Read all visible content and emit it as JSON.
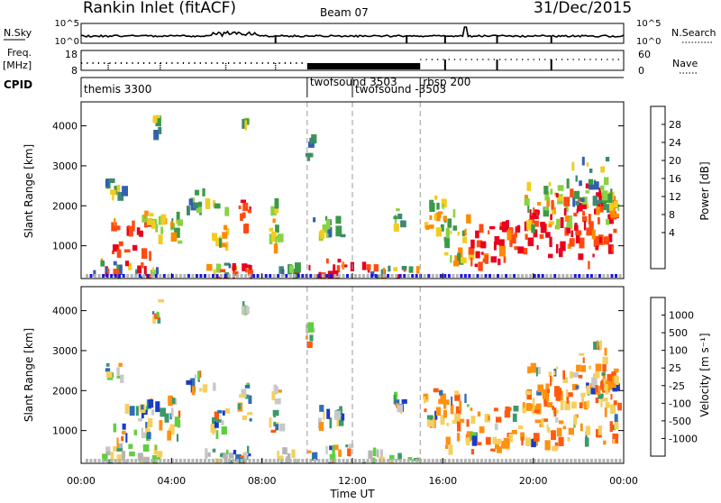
{
  "header": {
    "station": "Rankin Inlet (fitACF)",
    "beam": "Beam 07",
    "date": "31/Dec/2015"
  },
  "strips": {
    "nsky_label": "N.Sky",
    "nsearch_label": "N.Search",
    "nave_label": "Nave",
    "freq_label": "Freq.",
    "freq_unit": "[MHz]",
    "cpid_label": "CPID",
    "noise_ticks": [
      "10^5",
      "10^0"
    ],
    "freq_ticks": [
      "18",
      "8"
    ],
    "nave_ticks": [
      "60",
      "0"
    ],
    "cpid_modes": [
      {
        "label": "themis 3300",
        "start": 0.0
      },
      {
        "label": "twofsound 3503",
        "start": 10.0
      },
      {
        "label": "twofsound -3503",
        "start": 12.0
      },
      {
        "label": "rbsp 200",
        "start": 15.0
      }
    ]
  },
  "chart_data": [
    {
      "type": "heatmap",
      "name": "power-panel",
      "ylabel": "Slant Range [km]",
      "xlabel": "Time UT",
      "x_ticks": [
        "00:00",
        "04:00",
        "08:00",
        "12:00",
        "16:00",
        "20:00",
        "00:00"
      ],
      "xlim": [
        0,
        24
      ],
      "ylim": [
        180,
        4600
      ],
      "y_ticks": [
        1000,
        2000,
        3000,
        4000
      ],
      "colorbar": {
        "label": "Power [dB]",
        "ticks": [
          "28",
          "24",
          "20",
          "16",
          "12",
          "8",
          "4"
        ],
        "colors": [
          "#e8001e",
          "#ff4a10",
          "#ff8a00",
          "#f2cc20",
          "#88d244",
          "#3a9a48",
          "#3e8872",
          "#355eb0",
          "#1a1ad8"
        ]
      }
    },
    {
      "type": "heatmap",
      "name": "velocity-panel",
      "ylabel": "Slant Range [km]",
      "xlabel": "Time UT",
      "x_ticks": [
        "00:00",
        "04:00",
        "08:00",
        "12:00",
        "16:00",
        "20:00",
        "00:00"
      ],
      "xlim": [
        0,
        24
      ],
      "ylim": [
        180,
        4600
      ],
      "y_ticks": [
        1000,
        2000,
        3000,
        4000
      ],
      "colorbar": {
        "label": "Velocity [m s⁻¹]",
        "ticks": [
          "1000",
          "500",
          "100",
          "25",
          "-25",
          "-100",
          "-500",
          "-1000"
        ],
        "colors": [
          "#1a3ac8",
          "#2f6eb4",
          "#3a9a6a",
          "#5fce40",
          "#c8c8c8",
          "#f5d060",
          "#ff9010",
          "#ff5a10",
          "#e8001e"
        ]
      }
    }
  ],
  "colors": {
    "ground_scatter": "#b4b4b4",
    "mode_dash": "#9a9a9a"
  }
}
